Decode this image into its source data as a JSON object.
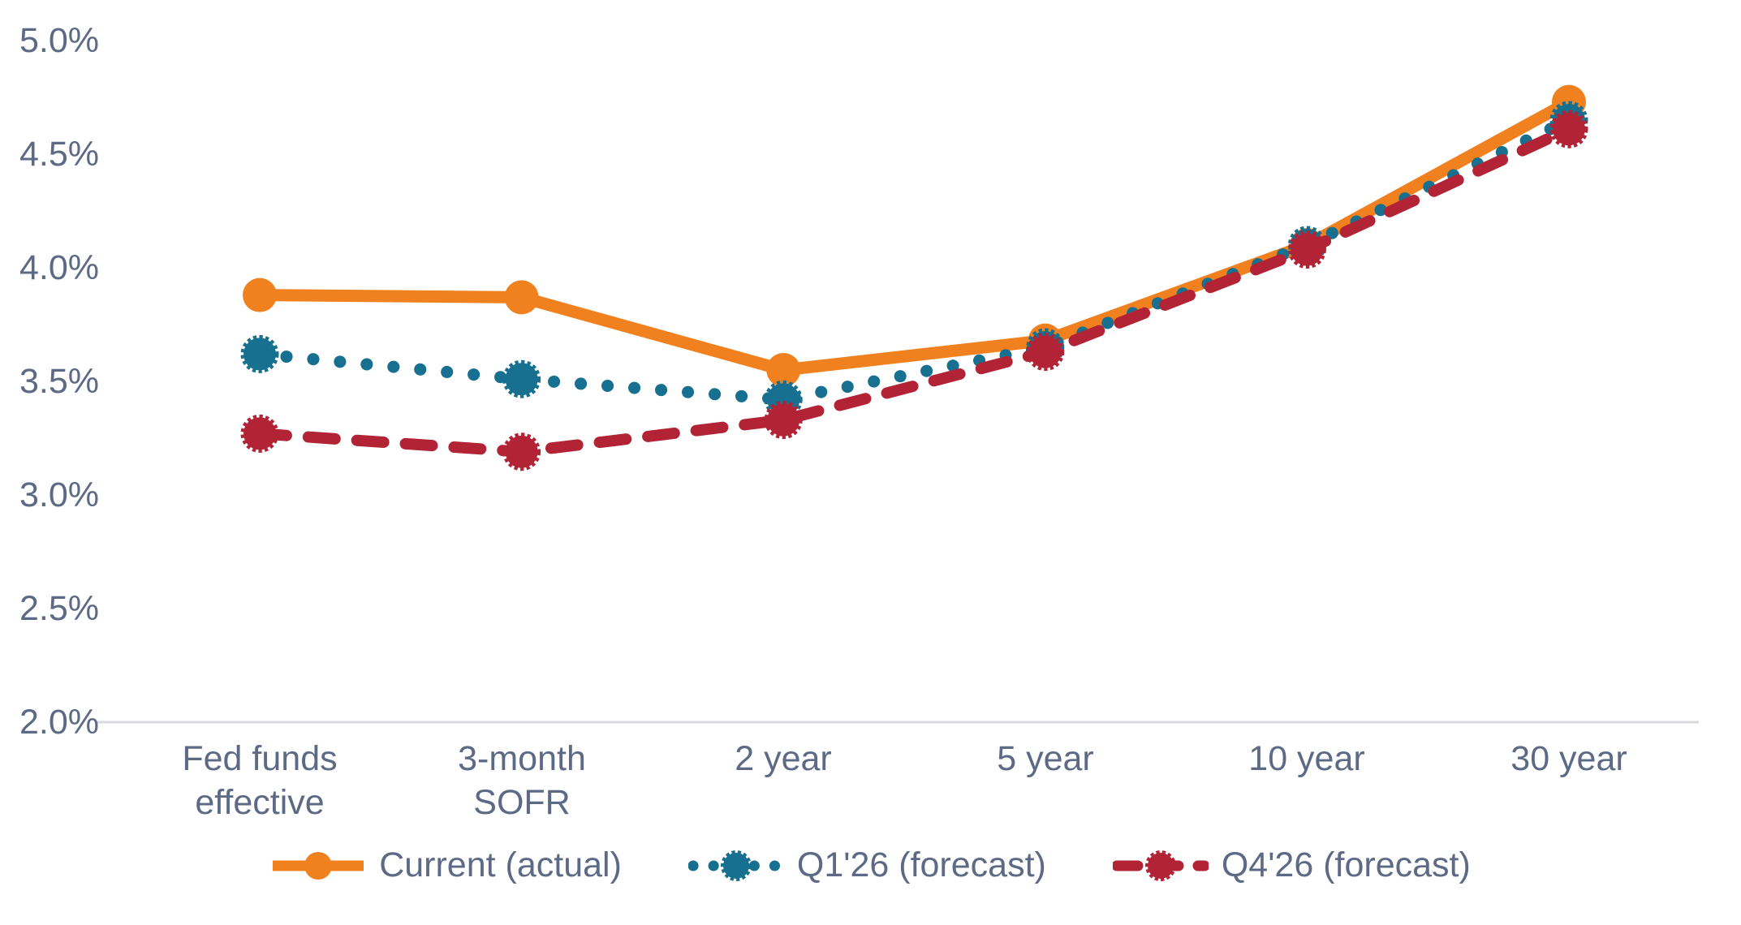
{
  "chart_data": {
    "type": "line",
    "categories": [
      "Fed funds effective",
      "3-month SOFR",
      "2 year",
      "5 year",
      "10 year",
      "30 year"
    ],
    "series": [
      {
        "name": "Current (actual)",
        "color": "#F0811E",
        "line_style": "solid",
        "values": [
          3.88,
          3.87,
          3.55,
          3.68,
          4.1,
          4.73
        ]
      },
      {
        "name": "Q1'26 (forecast)",
        "color": "#17708F",
        "line_style": "dotted",
        "values": [
          3.62,
          3.51,
          3.42,
          3.65,
          4.1,
          4.65
        ]
      },
      {
        "name": "Q4'26 (forecast)",
        "color": "#B22335",
        "line_style": "dashed",
        "values": [
          3.27,
          3.19,
          3.33,
          3.63,
          4.08,
          4.61
        ]
      }
    ],
    "y_axis": {
      "min": 2.0,
      "max": 5.0,
      "step": 0.5,
      "tick_labels": [
        "5.0%",
        "4.5%",
        "4.0%",
        "3.5%",
        "3.0%",
        "2.5%",
        "2.0%"
      ],
      "unit": "%"
    },
    "title": "",
    "grid": "off",
    "legend_position": "bottom",
    "colors": {
      "axis_text": "#5C6A86",
      "axis_line": "#D9D9E0",
      "background": "#FFFFFF"
    }
  }
}
